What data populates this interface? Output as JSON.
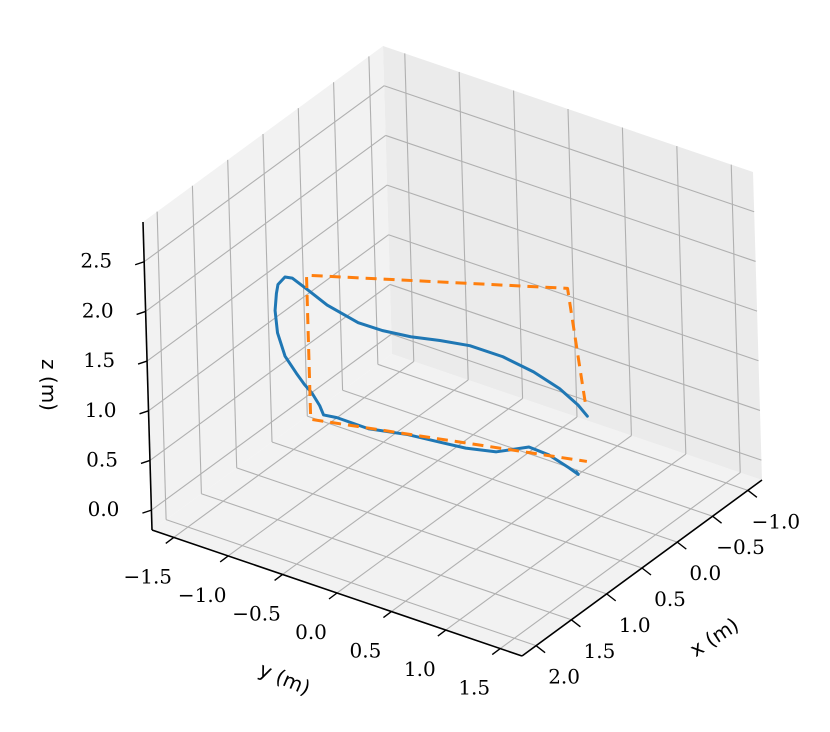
{
  "chart_data": {
    "type": "line3d",
    "xlabel": "x (m)",
    "ylabel": "y (m)",
    "zlabel": "z (m)",
    "x_ticks": [
      "−1.0",
      "−0.5",
      "0.0",
      "0.5",
      "1.0",
      "1.5",
      "2.0"
    ],
    "y_ticks": [
      "−1.5",
      "−1.0",
      "−0.5",
      "0.0",
      "0.5",
      "1.0",
      "1.5"
    ],
    "z_ticks": [
      "0.0",
      "0.5",
      "1.0",
      "1.5",
      "2.0",
      "2.5"
    ],
    "xlim": [
      -1.2,
      2.2
    ],
    "ylim": [
      -1.7,
      1.7
    ],
    "zlim": [
      -0.2,
      2.9
    ],
    "grid": true,
    "series": [
      {
        "style": "solid",
        "color": "#1f77b4",
        "points": [
          [
            0.3,
            1.1,
            1.0
          ],
          [
            0.35,
            1.05,
            1.12
          ],
          [
            0.45,
            0.95,
            1.3
          ],
          [
            0.58,
            0.8,
            1.48
          ],
          [
            0.7,
            0.6,
            1.62
          ],
          [
            0.78,
            0.35,
            1.68
          ],
          [
            0.82,
            0.1,
            1.66
          ],
          [
            0.85,
            -0.15,
            1.62
          ],
          [
            0.87,
            -0.4,
            1.6
          ],
          [
            0.9,
            -0.6,
            1.62
          ],
          [
            0.95,
            -0.85,
            1.73
          ],
          [
            1.0,
            -1.0,
            1.86
          ],
          [
            1.05,
            -1.1,
            1.96
          ],
          [
            1.12,
            -1.12,
            2.0
          ],
          [
            1.25,
            -1.1,
            2.0
          ],
          [
            1.35,
            -1.05,
            1.98
          ],
          [
            1.45,
            -1.0,
            1.88
          ],
          [
            1.5,
            -0.95,
            1.7
          ],
          [
            1.45,
            -0.92,
            1.45
          ],
          [
            1.3,
            -0.92,
            1.2
          ],
          [
            1.15,
            -0.95,
            1.0
          ],
          [
            1.0,
            -0.98,
            0.82
          ],
          [
            0.87,
            -1.0,
            0.62
          ],
          [
            0.82,
            -1.0,
            0.5
          ],
          [
            0.86,
            -0.85,
            0.55
          ],
          [
            0.8,
            -0.6,
            0.5
          ],
          [
            0.7,
            -0.3,
            0.5
          ],
          [
            0.63,
            -0.05,
            0.48
          ],
          [
            0.58,
            0.15,
            0.47
          ],
          [
            0.53,
            0.4,
            0.5
          ],
          [
            0.45,
            0.65,
            0.6
          ],
          [
            0.4,
            0.8,
            0.55
          ],
          [
            0.35,
            0.95,
            0.45
          ],
          [
            0.33,
            1.02,
            0.4
          ],
          [
            0.37,
            1.03,
            0.45
          ]
        ]
      },
      {
        "style": "dashed",
        "color": "#ff7f0e",
        "points": [
          [
            0.25,
            1.05,
            1.1
          ],
          [
            0.0,
            0.75,
            2.0
          ],
          [
            1.0,
            -1.0,
            2.0
          ],
          [
            1.0,
            -1.0,
            0.55
          ],
          [
            0.25,
            1.05,
            0.5
          ]
        ]
      }
    ]
  }
}
